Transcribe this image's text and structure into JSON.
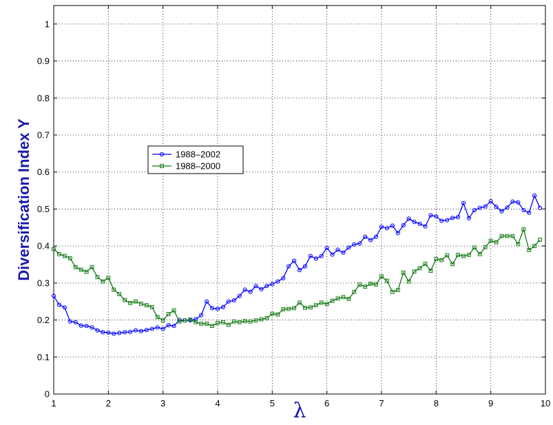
{
  "chart_data": {
    "type": "line",
    "title": "",
    "xlabel": "λ",
    "ylabel": "Diversification Index Y",
    "xlim": [
      1,
      10
    ],
    "ylim": [
      0,
      1.05
    ],
    "xticks": [
      1,
      2,
      3,
      4,
      5,
      6,
      7,
      8,
      9,
      10
    ],
    "yticks": [
      0,
      0.1,
      0.2,
      0.3,
      0.4,
      0.5,
      0.6,
      0.7,
      0.8,
      0.9,
      1
    ],
    "grid": true,
    "legend_position": "upper-left-center",
    "series": [
      {
        "name": "1988–2002",
        "color": "#0000ff",
        "marker": "circle",
        "x_start": 1,
        "x_step": 0.1,
        "values": [
          0.265,
          0.241,
          0.234,
          0.196,
          0.194,
          0.185,
          0.184,
          0.18,
          0.172,
          0.167,
          0.166,
          0.163,
          0.165,
          0.167,
          0.168,
          0.172,
          0.17,
          0.173,
          0.176,
          0.18,
          0.176,
          0.186,
          0.184,
          0.2,
          0.199,
          0.199,
          0.202,
          0.213,
          0.25,
          0.232,
          0.23,
          0.235,
          0.25,
          0.253,
          0.265,
          0.282,
          0.276,
          0.292,
          0.283,
          0.292,
          0.297,
          0.304,
          0.313,
          0.345,
          0.36,
          0.335,
          0.345,
          0.373,
          0.366,
          0.373,
          0.395,
          0.377,
          0.39,
          0.382,
          0.396,
          0.404,
          0.407,
          0.425,
          0.416,
          0.425,
          0.452,
          0.448,
          0.455,
          0.435,
          0.456,
          0.474,
          0.465,
          0.46,
          0.453,
          0.483,
          0.48,
          0.468,
          0.47,
          0.476,
          0.478,
          0.516,
          0.475,
          0.497,
          0.503,
          0.507,
          0.521,
          0.506,
          0.494,
          0.504,
          0.52,
          0.518,
          0.497,
          0.49,
          0.536,
          0.503
        ]
      },
      {
        "name": "1988–2000",
        "color": "#117a11",
        "marker": "square",
        "x_start": 1,
        "x_step": 0.1,
        "values": [
          0.392,
          0.378,
          0.373,
          0.367,
          0.343,
          0.336,
          0.33,
          0.343,
          0.316,
          0.304,
          0.314,
          0.282,
          0.27,
          0.254,
          0.246,
          0.25,
          0.244,
          0.24,
          0.235,
          0.208,
          0.199,
          0.216,
          0.226,
          0.196,
          0.199,
          0.201,
          0.194,
          0.19,
          0.19,
          0.184,
          0.192,
          0.194,
          0.187,
          0.196,
          0.194,
          0.197,
          0.196,
          0.199,
          0.202,
          0.205,
          0.217,
          0.215,
          0.229,
          0.23,
          0.232,
          0.247,
          0.233,
          0.234,
          0.24,
          0.247,
          0.243,
          0.252,
          0.258,
          0.262,
          0.257,
          0.276,
          0.296,
          0.29,
          0.298,
          0.296,
          0.318,
          0.306,
          0.276,
          0.281,
          0.328,
          0.304,
          0.331,
          0.34,
          0.352,
          0.333,
          0.365,
          0.362,
          0.375,
          0.351,
          0.376,
          0.373,
          0.376,
          0.396,
          0.378,
          0.397,
          0.414,
          0.41,
          0.427,
          0.427,
          0.427,
          0.405,
          0.445,
          0.389,
          0.4,
          0.417
        ]
      }
    ]
  }
}
